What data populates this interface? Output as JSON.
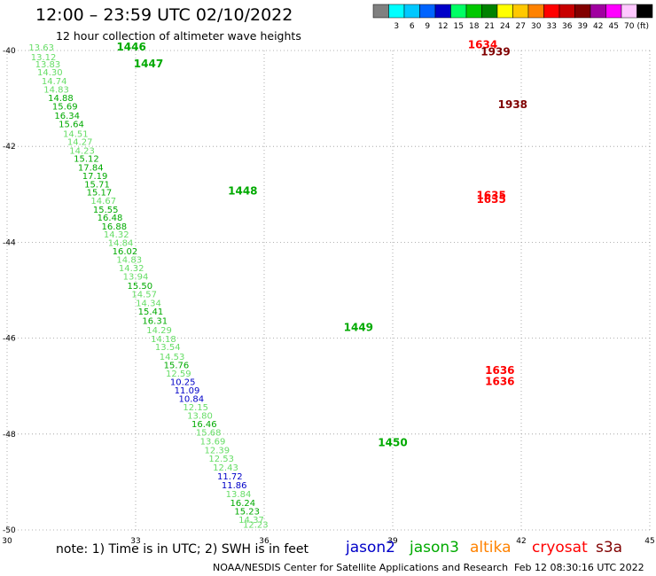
{
  "header": {
    "title": "12:00 – 23:59 UTC 02/10/2022",
    "subtitle": "12 hour collection of altimeter wave heights"
  },
  "colorbar": {
    "unit": "(ft)",
    "swatches": [
      {
        "color": "#808080",
        "label": ""
      },
      {
        "color": "#00ffff",
        "label": "3"
      },
      {
        "color": "#00c8ff",
        "label": "6"
      },
      {
        "color": "#0064ff",
        "label": "9"
      },
      {
        "color": "#0000c8",
        "label": "12"
      },
      {
        "color": "#00ff64",
        "label": "15"
      },
      {
        "color": "#00c800",
        "label": "18"
      },
      {
        "color": "#008200",
        "label": "21"
      },
      {
        "color": "#ffff00",
        "label": "24"
      },
      {
        "color": "#ffc800",
        "label": "27"
      },
      {
        "color": "#ff8200",
        "label": "30"
      },
      {
        "color": "#ff0000",
        "label": "33"
      },
      {
        "color": "#c80000",
        "label": "36"
      },
      {
        "color": "#820000",
        "label": "39"
      },
      {
        "color": "#a000a0",
        "label": "42"
      },
      {
        "color": "#ff00ff",
        "label": "45"
      },
      {
        "color": "#ffc8ff",
        "label": "70"
      },
      {
        "color": "#000000",
        "label": ""
      }
    ]
  },
  "chart_data": {
    "type": "scatter",
    "xlim": [
      30,
      45
    ],
    "ylim": [
      -50,
      -40
    ],
    "x_ticks": [
      "30",
      "33",
      "36",
      "39",
      "42",
      "45"
    ],
    "y_ticks": [
      "-50",
      "-48",
      "-46",
      "-44",
      "-42",
      "-40"
    ],
    "grid": true,
    "colors": {
      "jason2": "#0000c8",
      "jason3": "#00aa00",
      "jason3_light": "#66dd66",
      "time_label": "#007700",
      "cyan_label": "#00b4e0",
      "cryosat": "#ff0000",
      "s3a": "#800000"
    },
    "time_labels": [
      {
        "x": 32.9,
        "y": -40.0,
        "text": "1446",
        "sat": "jason3"
      },
      {
        "x": 33.3,
        "y": -40.35,
        "text": "1447",
        "sat": "jason3"
      },
      {
        "x": 35.5,
        "y": -43.0,
        "text": "1448",
        "sat": "jason3"
      },
      {
        "x": 38.2,
        "y": -45.85,
        "text": "1449",
        "sat": "jason3"
      },
      {
        "x": 39.0,
        "y": -48.25,
        "text": "1450",
        "sat": "jason3"
      },
      {
        "x": 41.5,
        "y": -46.75,
        "text": "1636",
        "sat": "cryosat"
      },
      {
        "x": 41.5,
        "y": -46.98,
        "text": "1636",
        "sat": "cryosat"
      },
      {
        "x": 41.3,
        "y": -43.1,
        "text": "1635",
        "sat": "cryosat"
      },
      {
        "x": 41.3,
        "y": -43.18,
        "text": "1635",
        "sat": "cryosat"
      },
      {
        "x": 41.1,
        "y": -39.95,
        "text": "1634",
        "sat": "cryosat"
      },
      {
        "x": 41.4,
        "y": -40.1,
        "text": "1939",
        "sat": "s3a"
      },
      {
        "x": 41.8,
        "y": -41.2,
        "text": "1938",
        "sat": "s3a"
      }
    ],
    "points": [
      {
        "x": 30.8,
        "y": -40.0,
        "v": "13.63",
        "sat": "jason3_light"
      },
      {
        "x": 30.85,
        "y": -40.2,
        "v": "13.12",
        "sat": "jason3_light"
      },
      {
        "x": 30.95,
        "y": -40.35,
        "v": "13.83",
        "sat": "jason3_light"
      },
      {
        "x": 31.0,
        "y": -40.52,
        "v": "14.30",
        "sat": "jason3_light"
      },
      {
        "x": 31.1,
        "y": -40.7,
        "v": "14.74",
        "sat": "jason3_light"
      },
      {
        "x": 31.15,
        "y": -40.88,
        "v": "14.83",
        "sat": "jason3_light"
      },
      {
        "x": 31.25,
        "y": -41.05,
        "v": "14.88",
        "sat": "jason3"
      },
      {
        "x": 31.35,
        "y": -41.23,
        "v": "15.69",
        "sat": "jason3"
      },
      {
        "x": 31.4,
        "y": -41.42,
        "v": "16.34",
        "sat": "jason3"
      },
      {
        "x": 31.5,
        "y": -41.6,
        "v": "15.64",
        "sat": "jason3"
      },
      {
        "x": 31.6,
        "y": -41.8,
        "v": "14.51",
        "sat": "jason3_light"
      },
      {
        "x": 31.7,
        "y": -41.97,
        "v": "14.27",
        "sat": "jason3_light"
      },
      {
        "x": 31.75,
        "y": -42.15,
        "v": "14.23",
        "sat": "jason3_light"
      },
      {
        "x": 31.85,
        "y": -42.32,
        "v": "15.12",
        "sat": "jason3"
      },
      {
        "x": 31.95,
        "y": -42.5,
        "v": "17.84",
        "sat": "jason3"
      },
      {
        "x": 32.05,
        "y": -42.68,
        "v": "17.19",
        "sat": "jason3"
      },
      {
        "x": 32.1,
        "y": -42.86,
        "v": "15.71",
        "sat": "jason3"
      },
      {
        "x": 32.15,
        "y": -43.02,
        "v": "15.17",
        "sat": "jason3"
      },
      {
        "x": 32.25,
        "y": -43.2,
        "v": "14.67",
        "sat": "jason3_light"
      },
      {
        "x": 32.3,
        "y": -43.38,
        "v": "15.55",
        "sat": "jason3"
      },
      {
        "x": 32.4,
        "y": -43.55,
        "v": "16.48",
        "sat": "jason3"
      },
      {
        "x": 32.5,
        "y": -43.73,
        "v": "16.88",
        "sat": "jason3"
      },
      {
        "x": 32.55,
        "y": -43.9,
        "v": "14.32",
        "sat": "jason3_light"
      },
      {
        "x": 32.65,
        "y": -44.08,
        "v": "14.84",
        "sat": "jason3_light"
      },
      {
        "x": 32.75,
        "y": -44.25,
        "v": "16.02",
        "sat": "jason3"
      },
      {
        "x": 32.85,
        "y": -44.43,
        "v": "14.83",
        "sat": "jason3_light"
      },
      {
        "x": 32.9,
        "y": -44.6,
        "v": "14.32",
        "sat": "jason3_light"
      },
      {
        "x": 33.0,
        "y": -44.78,
        "v": "13.94",
        "sat": "jason3_light"
      },
      {
        "x": 33.1,
        "y": -44.97,
        "v": "15.50",
        "sat": "jason3"
      },
      {
        "x": 33.2,
        "y": -45.15,
        "v": "14.57",
        "sat": "jason3_light"
      },
      {
        "x": 33.3,
        "y": -45.33,
        "v": "14.34",
        "sat": "jason3_light"
      },
      {
        "x": 33.35,
        "y": -45.51,
        "v": "15.41",
        "sat": "jason3"
      },
      {
        "x": 33.45,
        "y": -45.7,
        "v": "16.31",
        "sat": "jason3"
      },
      {
        "x": 33.55,
        "y": -45.9,
        "v": "14.29",
        "sat": "jason3_light"
      },
      {
        "x": 33.65,
        "y": -46.08,
        "v": "14.18",
        "sat": "jason3_light"
      },
      {
        "x": 33.75,
        "y": -46.25,
        "v": "13.54",
        "sat": "jason3_light"
      },
      {
        "x": 33.85,
        "y": -46.45,
        "v": "14.53",
        "sat": "jason3_light"
      },
      {
        "x": 33.95,
        "y": -46.63,
        "v": "15.76",
        "sat": "jason3"
      },
      {
        "x": 34.0,
        "y": -46.8,
        "v": "12.59",
        "sat": "jason3_light"
      },
      {
        "x": 34.1,
        "y": -46.98,
        "v": "10.25",
        "sat": "jason2"
      },
      {
        "x": 34.2,
        "y": -47.15,
        "v": "11.09",
        "sat": "jason2"
      },
      {
        "x": 34.3,
        "y": -47.33,
        "v": "10.84",
        "sat": "jason2"
      },
      {
        "x": 34.4,
        "y": -47.5,
        "v": "12.15",
        "sat": "jason3_light"
      },
      {
        "x": 34.5,
        "y": -47.68,
        "v": "13.80",
        "sat": "jason3_light"
      },
      {
        "x": 34.6,
        "y": -47.86,
        "v": "16.46",
        "sat": "jason3"
      },
      {
        "x": 34.7,
        "y": -48.03,
        "v": "15.68",
        "sat": "jason3_light"
      },
      {
        "x": 34.8,
        "y": -48.22,
        "v": "13.69",
        "sat": "jason3_light"
      },
      {
        "x": 34.9,
        "y": -48.4,
        "v": "12.39",
        "sat": "jason3_light"
      },
      {
        "x": 35.0,
        "y": -48.58,
        "v": "12.53",
        "sat": "jason3_light"
      },
      {
        "x": 35.1,
        "y": -48.76,
        "v": "12.43",
        "sat": "jason3_light"
      },
      {
        "x": 35.2,
        "y": -48.95,
        "v": "11.72",
        "sat": "jason2"
      },
      {
        "x": 35.3,
        "y": -49.13,
        "v": "11.86",
        "sat": "jason2"
      },
      {
        "x": 35.4,
        "y": -49.32,
        "v": "13.84",
        "sat": "jason3_light"
      },
      {
        "x": 35.5,
        "y": -49.5,
        "v": "16.24",
        "sat": "jason3"
      },
      {
        "x": 35.6,
        "y": -49.68,
        "v": "15.23",
        "sat": "jason3"
      },
      {
        "x": 35.7,
        "y": -49.85,
        "v": "14.37",
        "sat": "jason3_light"
      },
      {
        "x": 35.8,
        "y": -49.95,
        "v": "12.23",
        "sat": "jason3_light"
      }
    ]
  },
  "footer": {
    "note": "note: 1) Time is in UTC; 2) SWH is in feet",
    "satellites": [
      {
        "name": "jason2",
        "color": "#0000c8"
      },
      {
        "name": "jason3",
        "color": "#00aa00"
      },
      {
        "name": "altika",
        "color": "#ff8200"
      },
      {
        "name": "cryosat",
        "color": "#ff0000"
      },
      {
        "name": "s3a",
        "color": "#800000"
      }
    ],
    "credit": "NOAA/NESDIS Center for Satellite Applications and Research",
    "timestamp": "Feb 12 08:30:16 UTC 2022"
  }
}
